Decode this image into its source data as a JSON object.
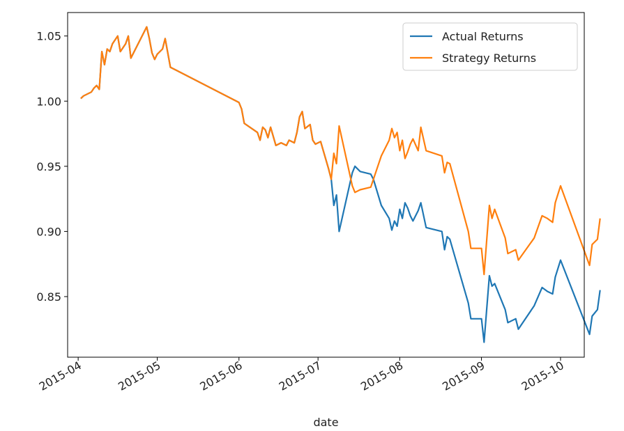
{
  "chart_data": {
    "type": "line",
    "title": "",
    "xlabel": "date",
    "ylabel": "",
    "x_tick_labels": [
      "2015-04",
      "2015-05",
      "2015-06",
      "2015-07",
      "2015-08",
      "2015-09",
      "2015-10"
    ],
    "y_tick_labels": [
      "0.85",
      "0.90",
      "0.95",
      "1.00",
      "1.05"
    ],
    "xlim": [
      "2015-03-28",
      "2015-10-10"
    ],
    "ylim": [
      0.8035,
      1.068
    ],
    "grid": false,
    "legend_position": "top-right",
    "series": [
      {
        "name": "Actual Returns",
        "color": "#1f77b4",
        "points": [
          [
            "2015-04-02",
            1.002
          ],
          [
            "2015-04-03",
            1.004
          ],
          [
            "2015-04-06",
            1.007
          ],
          [
            "2015-04-07",
            1.01
          ],
          [
            "2015-04-08",
            1.012
          ],
          [
            "2015-04-09",
            1.009
          ],
          [
            "2015-04-10",
            1.038
          ],
          [
            "2015-04-11",
            1.028
          ],
          [
            "2015-04-12",
            1.04
          ],
          [
            "2015-04-13",
            1.038
          ],
          [
            "2015-04-14",
            1.044
          ],
          [
            "2015-04-16",
            1.05
          ],
          [
            "2015-04-17",
            1.038
          ],
          [
            "2015-04-19",
            1.044
          ],
          [
            "2015-04-20",
            1.05
          ],
          [
            "2015-04-21",
            1.033
          ],
          [
            "2015-04-27",
            1.057
          ],
          [
            "2015-04-28",
            1.048
          ],
          [
            "2015-04-29",
            1.037
          ],
          [
            "2015-04-30",
            1.032
          ],
          [
            "2015-05-01",
            1.036
          ],
          [
            "2015-05-03",
            1.04
          ],
          [
            "2015-05-04",
            1.048
          ],
          [
            "2015-05-06",
            1.026
          ],
          [
            "2015-06-01",
            0.999
          ],
          [
            "2015-06-02",
            0.994
          ],
          [
            "2015-06-03",
            0.983
          ],
          [
            "2015-06-08",
            0.976
          ],
          [
            "2015-06-09",
            0.97
          ],
          [
            "2015-06-10",
            0.98
          ],
          [
            "2015-06-11",
            0.978
          ],
          [
            "2015-06-12",
            0.972
          ],
          [
            "2015-06-13",
            0.98
          ],
          [
            "2015-06-15",
            0.966
          ],
          [
            "2015-06-17",
            0.968
          ],
          [
            "2015-06-19",
            0.966
          ],
          [
            "2015-06-20",
            0.97
          ],
          [
            "2015-06-22",
            0.968
          ],
          [
            "2015-06-23",
            0.976
          ],
          [
            "2015-06-24",
            0.988
          ],
          [
            "2015-06-25",
            0.992
          ],
          [
            "2015-06-26",
            0.979
          ],
          [
            "2015-06-28",
            0.982
          ],
          [
            "2015-06-29",
            0.97
          ],
          [
            "2015-06-30",
            0.967
          ],
          [
            "2015-07-02",
            0.969
          ],
          [
            "2015-07-03",
            0.962
          ],
          [
            "2015-07-05",
            0.948
          ],
          [
            "2015-07-06",
            0.94
          ],
          [
            "2015-07-07",
            0.92
          ],
          [
            "2015-07-08",
            0.928
          ],
          [
            "2015-07-09",
            0.9
          ],
          [
            "2015-07-14",
            0.945
          ],
          [
            "2015-07-15",
            0.95
          ],
          [
            "2015-07-17",
            0.946
          ],
          [
            "2015-07-21",
            0.944
          ],
          [
            "2015-07-22",
            0.94
          ],
          [
            "2015-07-25",
            0.92
          ],
          [
            "2015-07-28",
            0.91
          ],
          [
            "2015-07-29",
            0.901
          ],
          [
            "2015-07-30",
            0.908
          ],
          [
            "2015-07-31",
            0.904
          ],
          [
            "2015-08-01",
            0.917
          ],
          [
            "2015-08-02",
            0.91
          ],
          [
            "2015-08-03",
            0.922
          ],
          [
            "2015-08-04",
            0.918
          ],
          [
            "2015-08-05",
            0.912
          ],
          [
            "2015-08-06",
            0.908
          ],
          [
            "2015-08-08",
            0.916
          ],
          [
            "2015-08-09",
            0.922
          ],
          [
            "2015-08-11",
            0.903
          ],
          [
            "2015-08-17",
            0.9
          ],
          [
            "2015-08-18",
            0.886
          ],
          [
            "2015-08-19",
            0.896
          ],
          [
            "2015-08-20",
            0.894
          ],
          [
            "2015-08-27",
            0.845
          ],
          [
            "2015-08-28",
            0.833
          ],
          [
            "2015-09-01",
            0.833
          ],
          [
            "2015-09-02",
            0.815
          ],
          [
            "2015-09-04",
            0.866
          ],
          [
            "2015-09-05",
            0.858
          ],
          [
            "2015-09-06",
            0.86
          ],
          [
            "2015-09-10",
            0.84
          ],
          [
            "2015-09-11",
            0.83
          ],
          [
            "2015-09-14",
            0.833
          ],
          [
            "2015-09-15",
            0.825
          ],
          [
            "2015-09-21",
            0.843
          ],
          [
            "2015-09-24",
            0.857
          ],
          [
            "2015-09-26",
            0.854
          ],
          [
            "2015-09-28",
            0.852
          ],
          [
            "2015-09-29",
            0.865
          ],
          [
            "2015-10-01",
            0.878
          ],
          [
            "2015-10-12",
            0.821
          ],
          [
            "2015-10-13",
            0.835
          ],
          [
            "2015-10-15",
            0.84
          ],
          [
            "2015-10-16",
            0.855
          ]
        ]
      },
      {
        "name": "Strategy Returns",
        "color": "#ff7f0e",
        "points": [
          [
            "2015-04-02",
            1.002
          ],
          [
            "2015-04-03",
            1.004
          ],
          [
            "2015-04-06",
            1.007
          ],
          [
            "2015-04-07",
            1.01
          ],
          [
            "2015-04-08",
            1.012
          ],
          [
            "2015-04-09",
            1.009
          ],
          [
            "2015-04-10",
            1.038
          ],
          [
            "2015-04-11",
            1.028
          ],
          [
            "2015-04-12",
            1.04
          ],
          [
            "2015-04-13",
            1.038
          ],
          [
            "2015-04-14",
            1.044
          ],
          [
            "2015-04-16",
            1.05
          ],
          [
            "2015-04-17",
            1.038
          ],
          [
            "2015-04-19",
            1.044
          ],
          [
            "2015-04-20",
            1.05
          ],
          [
            "2015-04-21",
            1.033
          ],
          [
            "2015-04-27",
            1.057
          ],
          [
            "2015-04-28",
            1.048
          ],
          [
            "2015-04-29",
            1.037
          ],
          [
            "2015-04-30",
            1.032
          ],
          [
            "2015-05-01",
            1.036
          ],
          [
            "2015-05-03",
            1.04
          ],
          [
            "2015-05-04",
            1.048
          ],
          [
            "2015-05-06",
            1.026
          ],
          [
            "2015-06-01",
            0.999
          ],
          [
            "2015-06-02",
            0.994
          ],
          [
            "2015-06-03",
            0.983
          ],
          [
            "2015-06-08",
            0.976
          ],
          [
            "2015-06-09",
            0.97
          ],
          [
            "2015-06-10",
            0.98
          ],
          [
            "2015-06-11",
            0.978
          ],
          [
            "2015-06-12",
            0.972
          ],
          [
            "2015-06-13",
            0.98
          ],
          [
            "2015-06-15",
            0.966
          ],
          [
            "2015-06-17",
            0.968
          ],
          [
            "2015-06-19",
            0.966
          ],
          [
            "2015-06-20",
            0.97
          ],
          [
            "2015-06-22",
            0.968
          ],
          [
            "2015-06-23",
            0.976
          ],
          [
            "2015-06-24",
            0.988
          ],
          [
            "2015-06-25",
            0.992
          ],
          [
            "2015-06-26",
            0.979
          ],
          [
            "2015-06-28",
            0.982
          ],
          [
            "2015-06-29",
            0.97
          ],
          [
            "2015-06-30",
            0.967
          ],
          [
            "2015-07-02",
            0.969
          ],
          [
            "2015-07-03",
            0.962
          ],
          [
            "2015-07-05",
            0.948
          ],
          [
            "2015-07-06",
            0.94
          ],
          [
            "2015-07-07",
            0.96
          ],
          [
            "2015-07-08",
            0.952
          ],
          [
            "2015-07-09",
            0.981
          ],
          [
            "2015-07-14",
            0.935
          ],
          [
            "2015-07-15",
            0.93
          ],
          [
            "2015-07-17",
            0.932
          ],
          [
            "2015-07-21",
            0.934
          ],
          [
            "2015-07-22",
            0.94
          ],
          [
            "2015-07-25",
            0.958
          ],
          [
            "2015-07-28",
            0.97
          ],
          [
            "2015-07-29",
            0.979
          ],
          [
            "2015-07-30",
            0.972
          ],
          [
            "2015-07-31",
            0.976
          ],
          [
            "2015-08-01",
            0.962
          ],
          [
            "2015-08-02",
            0.97
          ],
          [
            "2015-08-03",
            0.956
          ],
          [
            "2015-08-04",
            0.961
          ],
          [
            "2015-08-05",
            0.967
          ],
          [
            "2015-08-06",
            0.971
          ],
          [
            "2015-08-08",
            0.962
          ],
          [
            "2015-08-09",
            0.98
          ],
          [
            "2015-08-11",
            0.962
          ],
          [
            "2015-08-17",
            0.958
          ],
          [
            "2015-08-18",
            0.945
          ],
          [
            "2015-08-19",
            0.953
          ],
          [
            "2015-08-20",
            0.952
          ],
          [
            "2015-08-27",
            0.9
          ],
          [
            "2015-08-28",
            0.887
          ],
          [
            "2015-09-01",
            0.887
          ],
          [
            "2015-09-02",
            0.867
          ],
          [
            "2015-09-04",
            0.92
          ],
          [
            "2015-09-05",
            0.91
          ],
          [
            "2015-09-06",
            0.917
          ],
          [
            "2015-09-10",
            0.895
          ],
          [
            "2015-09-11",
            0.883
          ],
          [
            "2015-09-14",
            0.886
          ],
          [
            "2015-09-15",
            0.878
          ],
          [
            "2015-09-21",
            0.895
          ],
          [
            "2015-09-24",
            0.912
          ],
          [
            "2015-09-26",
            0.91
          ],
          [
            "2015-09-28",
            0.907
          ],
          [
            "2015-09-29",
            0.922
          ],
          [
            "2015-10-01",
            0.935
          ],
          [
            "2015-10-12",
            0.874
          ],
          [
            "2015-10-13",
            0.89
          ],
          [
            "2015-10-15",
            0.894
          ],
          [
            "2015-10-16",
            0.91
          ]
        ]
      }
    ]
  }
}
